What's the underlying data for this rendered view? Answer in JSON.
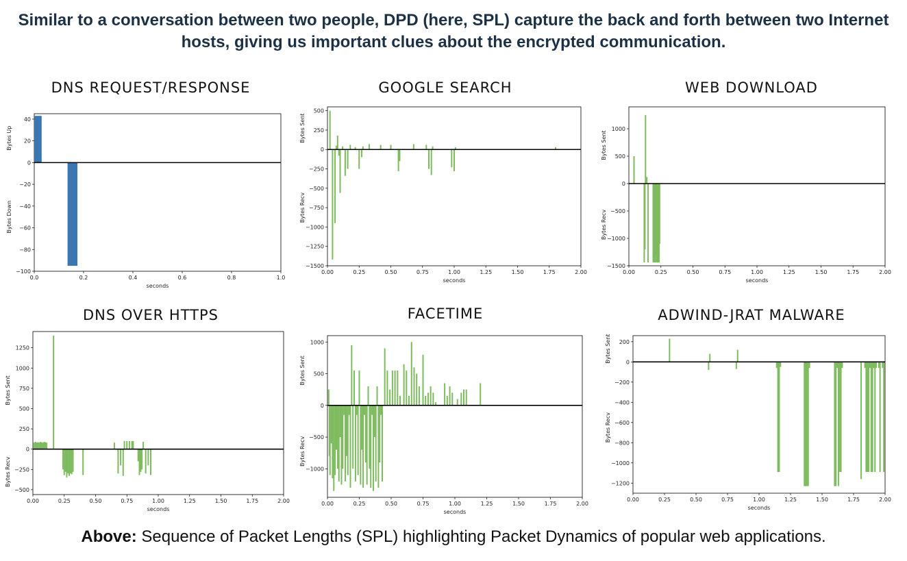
{
  "headline": "Similar to a conversation between two people, DPD (here, SPL) capture the back and forth between two Internet hosts, giving us important clues about the encrypted communication.",
  "caption": {
    "label": "Above:",
    "text": " Sequence of Packet Lengths (SPL) highlighting Packet Dynamics of popular web applications."
  },
  "colors": {
    "dns_bar": "#3a76b0",
    "spl_bar": "#7dbb5e",
    "axis": "#000000"
  },
  "chart_data": [
    {
      "id": "dns",
      "type": "bar",
      "title": "DNS REQUEST/RESPONSE",
      "xlabel": "seconds",
      "ylabel_up": "Bytes Up",
      "ylabel_down": "Bytes Down",
      "xlim": [
        0.0,
        1.0
      ],
      "ylim": [
        -100,
        45
      ],
      "xticks": [
        0.0,
        0.2,
        0.4,
        0.6,
        0.8,
        1.0
      ],
      "xtick_labels": [
        "0.0",
        "0.2",
        "0.4",
        "0.6",
        "0.8",
        "1.0"
      ],
      "yticks": [
        40,
        20,
        0,
        -20,
        -40,
        -60,
        -80,
        -100
      ],
      "ytick_labels": [
        "40",
        "20",
        "0",
        "−20",
        "−40",
        "−60",
        "−80",
        "−100"
      ],
      "bar_color": "#3a76b0",
      "bars": [
        {
          "x0": 0.0,
          "x1": 0.03,
          "value": 43
        },
        {
          "x0": 0.135,
          "x1": 0.175,
          "value": -95
        }
      ]
    },
    {
      "id": "google",
      "type": "bar",
      "title": "GOOGLE SEARCH",
      "xlabel": "seconds",
      "ylabel_up": "Bytes Sent",
      "ylabel_down": "Bytes Recv",
      "xlim": [
        0.0,
        2.0
      ],
      "ylim": [
        -1500,
        550
      ],
      "xticks": [
        0,
        0.25,
        0.5,
        0.75,
        1.0,
        1.25,
        1.5,
        1.75,
        2.0
      ],
      "xtick_labels": [
        "0.00",
        "0.25",
        "0.50",
        "0.75",
        "1.00",
        "1.25",
        "1.50",
        "1.75",
        "2.00"
      ],
      "yticks": [
        500,
        250,
        0,
        -250,
        -500,
        -750,
        -1000,
        -1250,
        -1500
      ],
      "ytick_labels": [
        "500",
        "250",
        "0",
        "−250",
        "−500",
        "−750",
        "−1000",
        "−1250",
        "−1500"
      ],
      "bar_color": "#7dbb5e",
      "spikes": [
        [
          0.02,
          500
        ],
        [
          0.04,
          -1420
        ],
        [
          0.06,
          -950
        ],
        [
          0.07,
          50
        ],
        [
          0.08,
          180
        ],
        [
          0.09,
          -80
        ],
        [
          0.1,
          -560
        ],
        [
          0.12,
          40
        ],
        [
          0.14,
          -340
        ],
        [
          0.16,
          -250
        ],
        [
          0.18,
          60
        ],
        [
          0.22,
          30
        ],
        [
          0.25,
          -250
        ],
        [
          0.27,
          -100
        ],
        [
          0.28,
          40
        ],
        [
          0.33,
          70
        ],
        [
          0.42,
          60
        ],
        [
          0.5,
          60
        ],
        [
          0.56,
          -280
        ],
        [
          0.57,
          -150
        ],
        [
          0.68,
          70
        ],
        [
          0.78,
          60
        ],
        [
          0.8,
          -250
        ],
        [
          0.82,
          -330
        ],
        [
          0.83,
          40
        ],
        [
          0.98,
          -230
        ],
        [
          1.0,
          -280
        ],
        [
          1.01,
          30
        ],
        [
          1.8,
          30
        ]
      ]
    },
    {
      "id": "web",
      "type": "bar",
      "title": "WEB DOWNLOAD",
      "xlabel": "seconds",
      "ylabel_up": "Bytes Sent",
      "ylabel_down": "Bytes Recv",
      "xlim": [
        0.0,
        2.0
      ],
      "ylim": [
        -1500,
        1400
      ],
      "xticks": [
        0,
        0.25,
        0.5,
        0.75,
        1.0,
        1.25,
        1.5,
        1.75,
        2.0
      ],
      "xtick_labels": [
        "0.00",
        "0.25",
        "0.50",
        "0.75",
        "1.00",
        "1.25",
        "1.50",
        "1.75",
        "2.00"
      ],
      "yticks": [
        1000,
        500,
        0,
        -500,
        -1000,
        -1500
      ],
      "ytick_labels": [
        "1000",
        "500",
        "0",
        "−500",
        "−1000",
        "−1500"
      ],
      "bar_color": "#7dbb5e",
      "spikes": [
        [
          0.04,
          500
        ],
        [
          0.12,
          -1440
        ],
        [
          0.125,
          -1200
        ],
        [
          0.13,
          1250
        ],
        [
          0.14,
          120
        ],
        [
          0.15,
          -1440
        ],
        [
          0.19,
          -1440
        ],
        [
          0.195,
          -1100
        ],
        [
          0.2,
          -1440
        ],
        [
          0.205,
          -1440
        ],
        [
          0.21,
          -1300
        ],
        [
          0.215,
          -1440
        ],
        [
          0.22,
          -1440
        ],
        [
          0.225,
          -1440
        ],
        [
          0.23,
          -1200
        ],
        [
          0.235,
          -1440
        ],
        [
          0.24,
          -1100
        ]
      ]
    },
    {
      "id": "doh",
      "type": "bar",
      "title": "DNS OVER HTTPS",
      "xlabel": "seconds",
      "ylabel_up": "Bytes Sent",
      "ylabel_down": "Bytes Recv",
      "xlim": [
        0.0,
        2.0
      ],
      "ylim": [
        -560,
        1450
      ],
      "xticks": [
        0,
        0.25,
        0.5,
        0.75,
        1.0,
        1.25,
        1.5,
        1.75,
        2.0
      ],
      "xtick_labels": [
        "0.00",
        "0.25",
        "0.50",
        "0.75",
        "1.00",
        "1.25",
        "1.50",
        "1.75",
        "2.00"
      ],
      "yticks": [
        1250,
        1000,
        750,
        500,
        250,
        0,
        -250,
        -500
      ],
      "ytick_labels": [
        "1250",
        "1000",
        "750",
        "500",
        "250",
        "0",
        "−250",
        "−500"
      ],
      "bar_color": "#7dbb5e",
      "spikes": [
        [
          0.01,
          80
        ],
        [
          0.02,
          90
        ],
        [
          0.03,
          80
        ],
        [
          0.04,
          85
        ],
        [
          0.05,
          80
        ],
        [
          0.06,
          90
        ],
        [
          0.07,
          85
        ],
        [
          0.08,
          80
        ],
        [
          0.09,
          90
        ],
        [
          0.1,
          85
        ],
        [
          0.11,
          80
        ],
        [
          0.165,
          1400
        ],
        [
          0.24,
          -250
        ],
        [
          0.25,
          -320
        ],
        [
          0.26,
          -280
        ],
        [
          0.27,
          -350
        ],
        [
          0.28,
          -300
        ],
        [
          0.29,
          -330
        ],
        [
          0.3,
          -300
        ],
        [
          0.31,
          -310
        ],
        [
          0.32,
          -280
        ],
        [
          0.4,
          -320
        ],
        [
          0.65,
          80
        ],
        [
          0.68,
          -300
        ],
        [
          0.7,
          -200
        ],
        [
          0.72,
          -330
        ],
        [
          0.73,
          100
        ],
        [
          0.75,
          100
        ],
        [
          0.77,
          100
        ],
        [
          0.79,
          100
        ],
        [
          0.8,
          100
        ],
        [
          0.84,
          -150
        ],
        [
          0.85,
          -320
        ],
        [
          0.86,
          -280
        ],
        [
          0.87,
          -250
        ],
        [
          0.88,
          90
        ],
        [
          0.9,
          -300
        ],
        [
          0.92,
          -200
        ],
        [
          0.94,
          -320
        ]
      ]
    },
    {
      "id": "facetime",
      "type": "bar",
      "title": "FACETIME",
      "xlabel": "seconds",
      "ylabel_up": "Bytes Sent",
      "ylabel_down": "Bytes Recv",
      "xlim": [
        0.0,
        2.0
      ],
      "ylim": [
        -1450,
        1100
      ],
      "xticks": [
        0,
        0.25,
        0.5,
        0.75,
        1.0,
        1.25,
        1.5,
        1.75,
        2.0
      ],
      "xtick_labels": [
        "0.00",
        "0.25",
        "0.50",
        "0.75",
        "1.00",
        "1.25",
        "1.50",
        "1.75",
        "2.00"
      ],
      "yticks": [
        1000,
        500,
        0,
        -500,
        -1000
      ],
      "ytick_labels": [
        "1000",
        "500",
        "0",
        "−500",
        "−1000"
      ],
      "bar_color": "#7dbb5e",
      "spikes": [
        [
          0.01,
          250
        ],
        [
          0.015,
          -800
        ],
        [
          0.02,
          -1100
        ],
        [
          0.03,
          -600
        ],
        [
          0.04,
          -1150
        ],
        [
          0.05,
          -1350
        ],
        [
          0.06,
          -1100
        ],
        [
          0.07,
          -700
        ],
        [
          0.08,
          -1000
        ],
        [
          0.09,
          -1200
        ],
        [
          0.1,
          -500
        ],
        [
          0.11,
          -1250
        ],
        [
          0.12,
          -1000
        ],
        [
          0.13,
          -150
        ],
        [
          0.14,
          -1200
        ],
        [
          0.15,
          -800
        ],
        [
          0.16,
          -1100
        ],
        [
          0.17,
          -150
        ],
        [
          0.18,
          -1300
        ],
        [
          0.19,
          950
        ],
        [
          0.2,
          -1000
        ],
        [
          0.21,
          550
        ],
        [
          0.22,
          -1200
        ],
        [
          0.23,
          -150
        ],
        [
          0.24,
          -1100
        ],
        [
          0.25,
          550
        ],
        [
          0.26,
          -1250
        ],
        [
          0.27,
          -700
        ],
        [
          0.28,
          -1300
        ],
        [
          0.29,
          -150
        ],
        [
          0.3,
          -900
        ],
        [
          0.31,
          -1250
        ],
        [
          0.32,
          300
        ],
        [
          0.33,
          -1000
        ],
        [
          0.34,
          -1300
        ],
        [
          0.35,
          -150
        ],
        [
          0.36,
          -1350
        ],
        [
          0.37,
          -500
        ],
        [
          0.38,
          -1200
        ],
        [
          0.39,
          300
        ],
        [
          0.4,
          -1300
        ],
        [
          0.41,
          -900
        ],
        [
          0.42,
          -150
        ],
        [
          0.43,
          -1200
        ],
        [
          0.45,
          900
        ],
        [
          0.47,
          550
        ],
        [
          0.49,
          250
        ],
        [
          0.51,
          550
        ],
        [
          0.53,
          550
        ],
        [
          0.55,
          550
        ],
        [
          0.57,
          150
        ],
        [
          0.6,
          650
        ],
        [
          0.62,
          550
        ],
        [
          0.64,
          150
        ],
        [
          0.66,
          1000
        ],
        [
          0.68,
          600
        ],
        [
          0.7,
          500
        ],
        [
          0.72,
          300
        ],
        [
          0.75,
          800
        ],
        [
          0.77,
          150
        ],
        [
          0.79,
          200
        ],
        [
          0.81,
          300
        ],
        [
          0.83,
          200
        ],
        [
          0.85,
          50
        ],
        [
          0.92,
          350
        ],
        [
          0.94,
          150
        ],
        [
          0.96,
          300
        ],
        [
          0.98,
          200
        ],
        [
          1.02,
          100
        ],
        [
          1.05,
          200
        ],
        [
          1.07,
          250
        ],
        [
          1.09,
          250
        ],
        [
          1.2,
          350
        ]
      ]
    },
    {
      "id": "malware",
      "type": "bar",
      "title": "ADWIND-JRAT MALWARE",
      "xlabel": "seconds",
      "ylabel_up": "Bytes Sent",
      "ylabel_down": "Bytes Recv",
      "xlim": [
        0.0,
        2.0
      ],
      "ylim": [
        -1300,
        260
      ],
      "xticks": [
        0,
        0.25,
        0.5,
        0.75,
        1.0,
        1.25,
        1.5,
        1.75,
        2.0
      ],
      "xtick_labels": [
        "0.00",
        "0.25",
        "0.50",
        "0.75",
        "1.00",
        "1.25",
        "1.50",
        "1.75",
        "2.00"
      ],
      "yticks": [
        200,
        0,
        -200,
        -400,
        -600,
        -800,
        -1000,
        -1200
      ],
      "ytick_labels": [
        "200",
        "0",
        "−200",
        "−400",
        "−600",
        "−800",
        "−1000",
        "−1200"
      ],
      "bar_color": "#7dbb5e",
      "spikes": [
        [
          0.29,
          230
        ],
        [
          0.6,
          -80
        ],
        [
          0.61,
          80
        ],
        [
          0.82,
          -70
        ],
        [
          0.83,
          120
        ],
        [
          1.14,
          -60
        ],
        [
          1.15,
          -1090
        ],
        [
          1.16,
          -1090
        ],
        [
          1.17,
          -50
        ],
        [
          1.36,
          -1230
        ],
        [
          1.37,
          -1230
        ],
        [
          1.38,
          -1230
        ],
        [
          1.39,
          -1230
        ],
        [
          1.4,
          -60
        ],
        [
          1.6,
          -1230
        ],
        [
          1.61,
          -1230
        ],
        [
          1.62,
          -60
        ],
        [
          1.63,
          -1230
        ],
        [
          1.64,
          -1090
        ],
        [
          1.65,
          -1090
        ],
        [
          1.66,
          -60
        ],
        [
          1.81,
          -1160
        ],
        [
          1.84,
          -60
        ],
        [
          1.85,
          -1090
        ],
        [
          1.86,
          -1090
        ],
        [
          1.87,
          -1090
        ],
        [
          1.88,
          -60
        ],
        [
          1.89,
          -1090
        ],
        [
          1.9,
          -1090
        ],
        [
          1.91,
          -60
        ],
        [
          1.92,
          -1090
        ],
        [
          1.93,
          -60
        ],
        [
          1.95,
          -60
        ],
        [
          1.96,
          -1090
        ],
        [
          1.98,
          -60
        ],
        [
          1.99,
          -1090
        ]
      ]
    }
  ]
}
